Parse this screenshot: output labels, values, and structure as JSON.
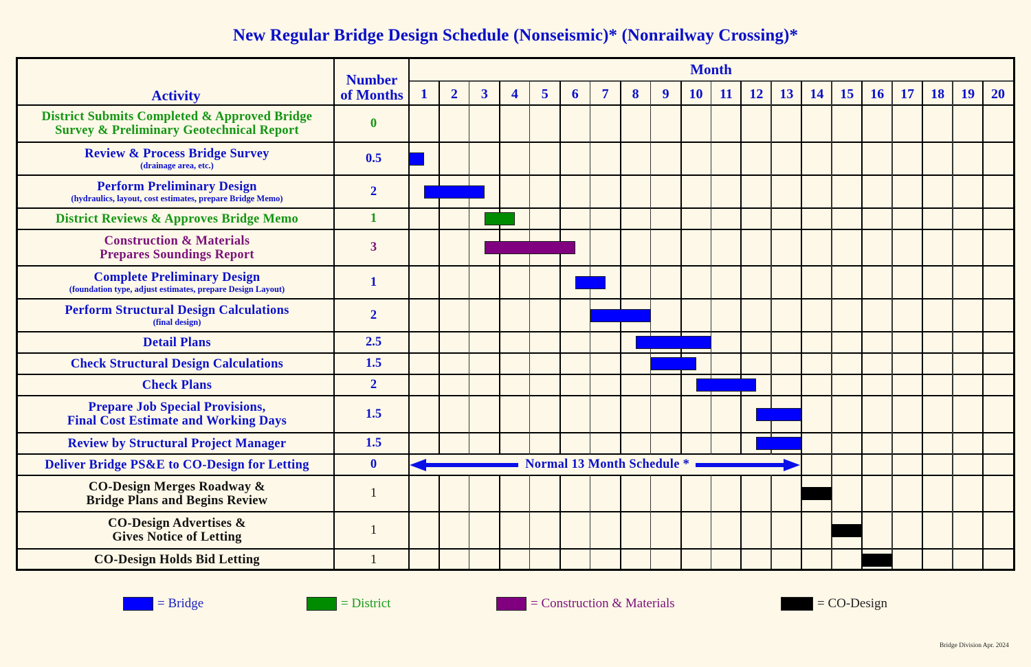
{
  "title": "New Regular Bridge Design Schedule (Nonseismic)* (Nonrailway Crossing)*",
  "colors": {
    "background": "#fdf8e8",
    "header_text": "#0a10c8",
    "bridge": "#0000ff",
    "district": "#008c00",
    "construction_materials": "#800080",
    "co_design": "#000000"
  },
  "header": {
    "activity": "Activity",
    "number_line1": "Number",
    "number_line2": "of Months",
    "month": "Month"
  },
  "months": [
    "1",
    "2",
    "3",
    "4",
    "5",
    "6",
    "7",
    "8",
    "9",
    "10",
    "11",
    "12",
    "13",
    "14",
    "15",
    "16",
    "17",
    "18",
    "19",
    "20"
  ],
  "rows": [
    {
      "line1": "District Submits Completed & Approved Bridge",
      "line2": "Survey & Preliminary Geotechnical Report",
      "sub": "",
      "months": "0",
      "group": "district"
    },
    {
      "line1": "Review & Process Bridge Survey",
      "line2": "",
      "sub": "(drainage area, etc.)",
      "months": "0.5",
      "group": "bridge"
    },
    {
      "line1": "Perform Preliminary Design",
      "line2": "",
      "sub": "(hydraulics, layout, cost estimates, prepare Bridge Memo)",
      "months": "2",
      "group": "bridge"
    },
    {
      "line1": "District Reviews & Approves Bridge Memo",
      "line2": "",
      "sub": "",
      "months": "1",
      "group": "district"
    },
    {
      "line1": "Construction & Materials",
      "line2": "Prepares Soundings Report",
      "sub": "",
      "months": "3",
      "group": "construction_materials"
    },
    {
      "line1": "Complete Preliminary Design",
      "line2": "",
      "sub": "(foundation type, adjust estimates, prepare Design Layout)",
      "months": "1",
      "group": "bridge"
    },
    {
      "line1": "Perform Structural Design Calculations",
      "line2": "",
      "sub": "(final design)",
      "months": "2",
      "group": "bridge"
    },
    {
      "line1": "Detail Plans",
      "line2": "",
      "sub": "",
      "months": "2.5",
      "group": "bridge"
    },
    {
      "line1": "Check Structural Design Calculations",
      "line2": "",
      "sub": "",
      "months": "1.5",
      "group": "bridge"
    },
    {
      "line1": "Check Plans",
      "line2": "",
      "sub": "",
      "months": "2",
      "group": "bridge"
    },
    {
      "line1": "Prepare Job Special Provisions,",
      "line2": "Final Cost Estimate and Working Days",
      "sub": "",
      "months": "1.5",
      "group": "bridge"
    },
    {
      "line1": "Review by Structural Project Manager",
      "line2": "",
      "sub": "",
      "months": "1.5",
      "group": "bridge"
    },
    {
      "line1": "Deliver Bridge PS&E to CO-Design for Letting",
      "line2": "",
      "sub": "",
      "months": "0",
      "group": "bridge"
    },
    {
      "line1": "CO-Design Merges Roadway &",
      "line2": "Bridge Plans and Begins Review",
      "sub": "",
      "months": "1",
      "group": "co_design"
    },
    {
      "line1": "CO-Design Advertises &",
      "line2": "Gives Notice of Letting",
      "sub": "",
      "months": "1",
      "group": "co_design"
    },
    {
      "line1": "CO-Design Holds Bid Letting",
      "line2": "",
      "sub": "",
      "months": "1",
      "group": "co_design"
    }
  ],
  "normal_schedule_label": "Normal 13 Month Schedule *",
  "legend": [
    {
      "label": "= Bridge",
      "group": "bridge"
    },
    {
      "label": "= District",
      "group": "district"
    },
    {
      "label": "= Construction & Materials",
      "group": "construction_materials"
    },
    {
      "label": "= CO-Design",
      "group": "co_design"
    }
  ],
  "footer": "Bridge Division Apr. 2024",
  "chart_data": {
    "type": "gantt",
    "title": "New Regular Bridge Design Schedule (Nonseismic)* (Nonrailway Crossing)*",
    "xlabel": "Month",
    "x_ticks": [
      1,
      2,
      3,
      4,
      5,
      6,
      7,
      8,
      9,
      10,
      11,
      12,
      13,
      14,
      15,
      16,
      17,
      18,
      19,
      20
    ],
    "xlim": [
      0,
      20
    ],
    "grid": true,
    "legend_position": "bottom",
    "annotation": {
      "text": "Normal 13 Month Schedule *",
      "from_month": 0,
      "to_month": 13,
      "row": "Deliver Bridge PS&E to CO-Design for Letting"
    },
    "tasks": [
      {
        "activity": "District Submits Completed & Approved Bridge Survey & Preliminary Geotechnical Report",
        "duration": 0,
        "start": null,
        "end": null,
        "series": "District"
      },
      {
        "activity": "Review & Process Bridge Survey",
        "duration": 0.5,
        "start": 0,
        "end": 0.5,
        "series": "Bridge"
      },
      {
        "activity": "Perform Preliminary Design",
        "duration": 2,
        "start": 0.5,
        "end": 2.5,
        "series": "Bridge"
      },
      {
        "activity": "District Reviews & Approves Bridge Memo",
        "duration": 1,
        "start": 2.5,
        "end": 3.5,
        "series": "District"
      },
      {
        "activity": "Construction & Materials Prepares Soundings Report",
        "duration": 3,
        "start": 2.5,
        "end": 5.5,
        "series": "Construction & Materials"
      },
      {
        "activity": "Complete Preliminary Design",
        "duration": 1,
        "start": 5.5,
        "end": 6.5,
        "series": "Bridge"
      },
      {
        "activity": "Perform Structural Design Calculations",
        "duration": 2,
        "start": 6,
        "end": 8,
        "series": "Bridge"
      },
      {
        "activity": "Detail Plans",
        "duration": 2.5,
        "start": 7.5,
        "end": 10,
        "series": "Bridge"
      },
      {
        "activity": "Check Structural Design Calculations",
        "duration": 1.5,
        "start": 8,
        "end": 9.5,
        "series": "Bridge"
      },
      {
        "activity": "Check Plans",
        "duration": 2,
        "start": 9.5,
        "end": 11.5,
        "series": "Bridge"
      },
      {
        "activity": "Prepare Job Special Provisions, Final Cost Estimate and Working Days",
        "duration": 1.5,
        "start": 11.5,
        "end": 13,
        "series": "Bridge"
      },
      {
        "activity": "Review by Structural Project Manager",
        "duration": 1.5,
        "start": 11.5,
        "end": 13,
        "series": "Bridge"
      },
      {
        "activity": "Deliver Bridge PS&E to CO-Design for Letting",
        "duration": 0,
        "start": null,
        "end": null,
        "series": "Bridge"
      },
      {
        "activity": "CO-Design Merges Roadway & Bridge Plans and Begins Review",
        "duration": 1,
        "start": 13,
        "end": 14,
        "series": "CO-Design"
      },
      {
        "activity": "CO-Design Advertises & Gives Notice of Letting",
        "duration": 1,
        "start": 14,
        "end": 15,
        "series": "CO-Design"
      },
      {
        "activity": "CO-Design Holds Bid Letting",
        "duration": 1,
        "start": 15,
        "end": 16,
        "series": "CO-Design"
      }
    ],
    "series": [
      "Bridge",
      "District",
      "Construction & Materials",
      "CO-Design"
    ]
  }
}
